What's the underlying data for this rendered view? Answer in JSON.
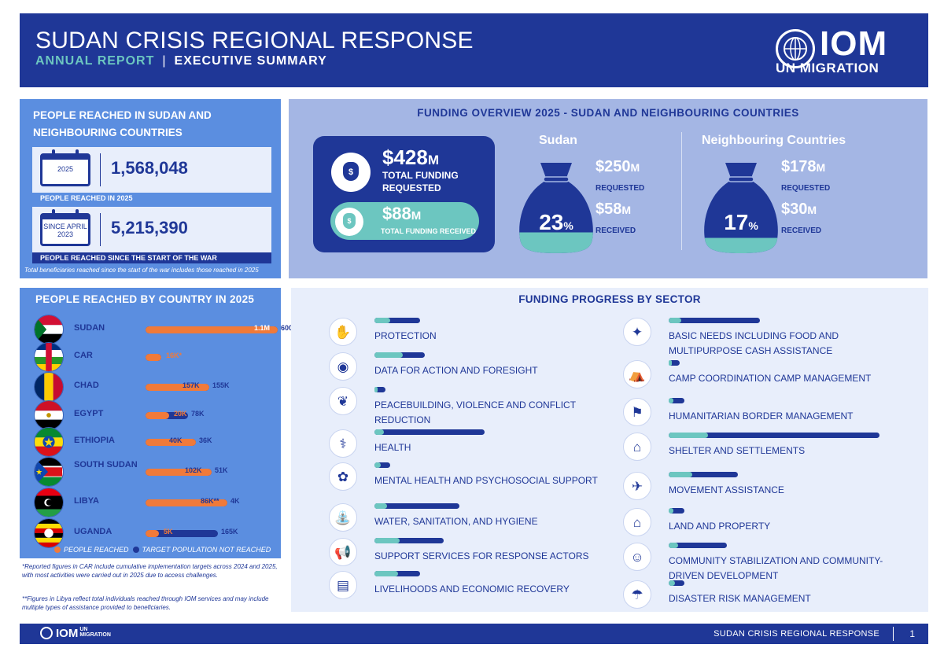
{
  "header": {
    "title": "SUDAN CRISIS REGIONAL RESPONSE",
    "annual": "ANNUAL REPORT",
    "separator": "|",
    "executive": "EXECUTIVE SUMMARY",
    "logo_text": "IOM",
    "logo_sub": "UN MIGRATION"
  },
  "people_reached": {
    "title": "PEOPLE REACHED IN SUDAN AND NEIGHBOURING COUNTRIES",
    "card1": {
      "calendar": "2025",
      "value": "1,568,048",
      "label": "PEOPLE REACHED IN 2025"
    },
    "card2": {
      "calendar_line1": "SINCE APRIL",
      "calendar_line2": "2023",
      "value": "5,215,390",
      "label": "PEOPLE REACHED SINCE THE START OF THE WAR"
    },
    "note": "Total beneficiaries reached since the start of the war includes those reached in 2025"
  },
  "funding_overview": {
    "title": "FUNDING OVERVIEW 2025 - SUDAN AND NEIGHBOURING COUNTRIES",
    "total_requested_value": "$428",
    "total_requested_unit": "M",
    "total_requested_label": "TOTAL FUNDING REQUESTED",
    "total_received_value": "$88",
    "total_received_unit": "M",
    "total_received_label": "TOTAL FUNDING RECEIVED",
    "bag_symbol": "$",
    "sudan": {
      "title": "Sudan",
      "pct": "23",
      "pct_unit": "%",
      "pct_value": 23,
      "requested": "$250",
      "received": "$58",
      "unit": "M",
      "requested_label": "REQUESTED",
      "received_label": "RECEIVED"
    },
    "neighbouring": {
      "title": "Neighbouring Countries",
      "pct": "17",
      "pct_unit": "%",
      "pct_value": 17,
      "requested": "$178",
      "received": "$30",
      "unit": "M",
      "requested_label": "REQUESTED",
      "received_label": "RECEIVED"
    }
  },
  "countries": {
    "title": "PEOPLE REACHED BY COUNTRY IN 2025",
    "items": [
      {
        "name": "SUDAN",
        "reached": "1.1M",
        "target": "600K",
        "track_frac": 1.0,
        "fill_frac": 1.0
      },
      {
        "name": "CAR",
        "reached": "16K*",
        "target": "",
        "track_frac": 0.12,
        "fill_frac": 0.12
      },
      {
        "name": "CHAD",
        "reached": "157K",
        "target": "155K",
        "track_frac": 0.48,
        "fill_frac": 0.48
      },
      {
        "name": "EGYPT",
        "reached": "20K",
        "target": "78K",
        "track_frac": 0.32,
        "fill_frac": 0.18
      },
      {
        "name": "ETHIOPIA",
        "reached": "40K",
        "target": "36K",
        "track_frac": 0.38,
        "fill_frac": 0.38
      },
      {
        "name": "SOUTH SUDAN",
        "reached": "102K",
        "target": "51K",
        "track_frac": 0.5,
        "fill_frac": 0.5
      },
      {
        "name": "LIBYA",
        "reached": "86K**",
        "target": "4K",
        "track_frac": 0.62,
        "fill_frac": 0.62
      },
      {
        "name": "UGANDA",
        "reached": "5K",
        "target": "165K",
        "track_frac": 0.55,
        "fill_frac": 0.1
      }
    ],
    "legend_reached": "PEOPLE REACHED",
    "legend_target": "TARGET POPULATION NOT REACHED",
    "note1": "*Reported figures in CAR include cumulative implementation targets across 2024 and 2025, with most activities were carried out in 2025 due to access challenges.",
    "note2": "**Figures in Libya reflect total individuals reached through IOM services and may include multiple types of assistance  provided to beneficiaries."
  },
  "sectors": {
    "title": "FUNDING PROGRESS BY SECTOR",
    "left": [
      {
        "label": "PROTECTION",
        "icon": "protection-icon",
        "glyph": "✋",
        "track": 58,
        "fill": 20
      },
      {
        "label": "DATA FOR ACTION AND FORESIGHT",
        "icon": "location-pin-icon",
        "glyph": "◉",
        "track": 64,
        "fill": 36
      },
      {
        "label": "PEACEBUILDING, VIOLENCE AND CONFLICT REDUCTION",
        "icon": "dove-icon",
        "glyph": "❦",
        "track": 14,
        "fill": 4
      },
      {
        "label": "HEALTH",
        "icon": "health-icon",
        "glyph": "⚕",
        "track": 140,
        "fill": 12
      },
      {
        "label": "MENTAL HEALTH AND PSYCHOSOCIAL SUPPORT",
        "icon": "mental-health-icon",
        "glyph": "✿",
        "track": 20,
        "fill": 8
      },
      {
        "label": "WATER, SANITATION, AND HYGIENE",
        "icon": "water-tap-icon",
        "glyph": "⛲",
        "track": 108,
        "fill": 16
      },
      {
        "label": "SUPPORT SERVICES FOR RESPONSE ACTORS",
        "icon": "megaphone-icon",
        "glyph": "📢",
        "track": 88,
        "fill": 32
      },
      {
        "label": "LIVELIHOODS AND ECONOMIC RECOVERY",
        "icon": "livelihoods-icon",
        "glyph": "▤",
        "track": 58,
        "fill": 30
      }
    ],
    "right": [
      {
        "label": "BASIC NEEDS INCLUDING FOOD AND MULTIPURPOSE CASH ASSISTANCE",
        "icon": "basic-needs-icon",
        "glyph": "✦",
        "track": 116,
        "fill": 16
      },
      {
        "label": "CAMP COORDINATION CAMP MANAGEMENT",
        "icon": "camp-icon",
        "glyph": "⛺",
        "track": 14,
        "fill": 4
      },
      {
        "label": "HUMANITARIAN BORDER MANAGEMENT",
        "icon": "border-icon",
        "glyph": "⚑",
        "track": 20,
        "fill": 6
      },
      {
        "label": "SHELTER AND SETTLEMENTS",
        "icon": "shelter-icon",
        "glyph": "⌂",
        "track": 268,
        "fill": 50
      },
      {
        "label": "MOVEMENT ASSISTANCE",
        "icon": "movement-icon",
        "glyph": "✈",
        "track": 88,
        "fill": 30
      },
      {
        "label": "LAND AND PROPERTY",
        "icon": "land-property-icon",
        "glyph": "⌂",
        "track": 20,
        "fill": 6
      },
      {
        "label": "COMMUNITY STABILIZATION AND COMMUNITY-DRIVEN DEVELOPMENT",
        "icon": "community-icon",
        "glyph": "☺",
        "track": 74,
        "fill": 12
      },
      {
        "label": "DISASTER RISK MANAGEMENT",
        "icon": "disaster-icon",
        "glyph": "☂",
        "track": 20,
        "fill": 8
      }
    ]
  },
  "footer": {
    "logo": "IOM",
    "logo_un": "UN",
    "logo_mig": "MIGRATION",
    "text": "SUDAN CRISIS REGIONAL RESPONSE",
    "page": "1"
  },
  "colors": {
    "navy": "#1f3797",
    "blue": "#5b8ee0",
    "teal": "#6cc6c0",
    "orange": "#f07a3a",
    "light": "#e8eefb",
    "lavender": "#a4b6e4"
  }
}
